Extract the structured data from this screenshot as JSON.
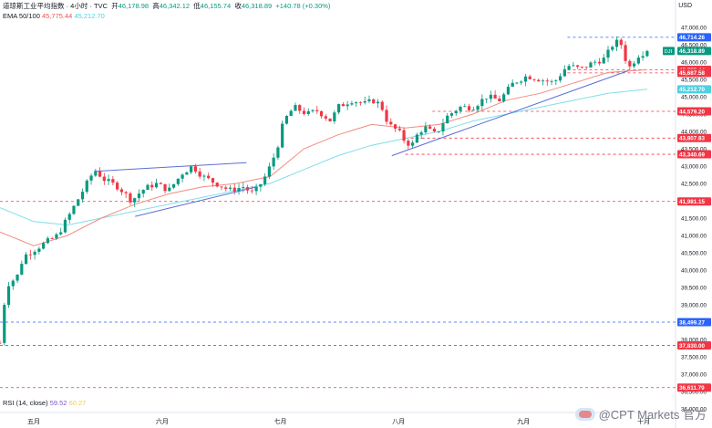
{
  "header": {
    "title": "道琼斯工业平均指数 · 4小时 · TVC",
    "ohlc_open_label": "开",
    "ohlc_open": "46,178.98",
    "ohlc_high_label": "高",
    "ohlc_high": "46,342.12",
    "ohlc_low_label": "低",
    "ohlc_low": "46,155.74",
    "ohlc_close_label": "收",
    "ohlc_close": "46,318.89",
    "change": "+140.78 (+0.30%)",
    "ema_label": "EMA 50/100",
    "ema50_value": "45,775.44",
    "ema100_value": "45,212.70",
    "rsi_label": "RSI (14, close)",
    "rsi_value1": "59.52",
    "rsi_value2": "60.27",
    "currency": "USD",
    "symbol_tag": "DJI"
  },
  "watermark": {
    "text": "@CPT Markets 官方"
  },
  "colors": {
    "up": "#089981",
    "down": "#f23645",
    "ema50": "#f28b82",
    "ema100": "#80deea",
    "trendline": "#5b6fd6",
    "red_level": "#f23645",
    "blue_level": "#2962ff"
  },
  "chart_data": {
    "type": "candlestick",
    "ylim": [
      36000,
      47000
    ],
    "y_ticks": [
      36000,
      36500,
      37000,
      37500,
      38000,
      38500,
      39000,
      39500,
      40000,
      40500,
      41000,
      41500,
      42000,
      42500,
      43000,
      43500,
      44000,
      44500,
      45000,
      45500,
      46000,
      46500,
      47000
    ],
    "y_tick_labels": [
      "36,000.00",
      "36,500.00",
      "37,000.00",
      "37,500.00",
      "38,000.00",
      "38,500.00",
      "39,000.00",
      "39,500.00",
      "40,000.00",
      "40,500.00",
      "41,000.00",
      "41,500.00",
      "42,000.00",
      "42,500.00",
      "43,000.00",
      "43,500.00",
      "44,000.00",
      "44,500.00",
      "45,000.00",
      "45,500.00",
      "46,000.00",
      "46,500.00",
      "47,000.00"
    ],
    "x_labels": [
      {
        "label": "五月",
        "t": 0.05
      },
      {
        "label": "六月",
        "t": 0.24
      },
      {
        "label": "七月",
        "t": 0.415
      },
      {
        "label": "八月",
        "t": 0.59
      },
      {
        "label": "九月",
        "t": 0.775
      },
      {
        "label": "十月",
        "t": 0.953
      }
    ],
    "waypoints": [
      [
        0,
        37900
      ],
      [
        0.005,
        38900
      ],
      [
        0.012,
        39600
      ],
      [
        0.025,
        39800
      ],
      [
        0.035,
        40400
      ],
      [
        0.06,
        40700
      ],
      [
        0.085,
        41000
      ],
      [
        0.1,
        41500
      ],
      [
        0.12,
        42200
      ],
      [
        0.14,
        42900
      ],
      [
        0.155,
        42600
      ],
      [
        0.175,
        42400
      ],
      [
        0.195,
        42000
      ],
      [
        0.21,
        42300
      ],
      [
        0.23,
        42500
      ],
      [
        0.25,
        42300
      ],
      [
        0.27,
        42800
      ],
      [
        0.285,
        43000
      ],
      [
        0.3,
        42700
      ],
      [
        0.32,
        42500
      ],
      [
        0.34,
        42300
      ],
      [
        0.36,
        42400
      ],
      [
        0.375,
        42200
      ],
      [
        0.39,
        42600
      ],
      [
        0.4,
        43000
      ],
      [
        0.41,
        43500
      ],
      [
        0.42,
        44300
      ],
      [
        0.435,
        44700
      ],
      [
        0.455,
        44500
      ],
      [
        0.47,
        44600
      ],
      [
        0.49,
        44300
      ],
      [
        0.5,
        44700
      ],
      [
        0.52,
        44900
      ],
      [
        0.54,
        44800
      ],
      [
        0.555,
        44900
      ],
      [
        0.565,
        44700
      ],
      [
        0.575,
        44200
      ],
      [
        0.59,
        44000
      ],
      [
        0.6,
        43700
      ],
      [
        0.61,
        43600
      ],
      [
        0.62,
        44000
      ],
      [
        0.63,
        44100
      ],
      [
        0.645,
        43900
      ],
      [
        0.66,
        44400
      ],
      [
        0.68,
        44700
      ],
      [
        0.7,
        44700
      ],
      [
        0.72,
        45000
      ],
      [
        0.74,
        44900
      ],
      [
        0.76,
        45400
      ],
      [
        0.78,
        45600
      ],
      [
        0.8,
        45500
      ],
      [
        0.82,
        45400
      ],
      [
        0.84,
        45900
      ],
      [
        0.86,
        45800
      ],
      [
        0.88,
        46000
      ],
      [
        0.895,
        46100
      ],
      [
        0.91,
        46600
      ],
      [
        0.92,
        46500
      ],
      [
        0.93,
        45800
      ],
      [
        0.945,
        46200
      ],
      [
        0.958,
        46320
      ]
    ],
    "candle_count": 150,
    "current_price": 46318.89,
    "ema50": [
      [
        0,
        41100
      ],
      [
        0.05,
        40700
      ],
      [
        0.1,
        41000
      ],
      [
        0.15,
        41500
      ],
      [
        0.2,
        41900
      ],
      [
        0.25,
        42200
      ],
      [
        0.3,
        42400
      ],
      [
        0.35,
        42500
      ],
      [
        0.4,
        42700
      ],
      [
        0.45,
        43500
      ],
      [
        0.5,
        43900
      ],
      [
        0.55,
        44200
      ],
      [
        0.6,
        44100
      ],
      [
        0.65,
        44200
      ],
      [
        0.7,
        44500
      ],
      [
        0.75,
        44900
      ],
      [
        0.8,
        45100
      ],
      [
        0.85,
        45400
      ],
      [
        0.9,
        45700
      ],
      [
        0.958,
        45780
      ]
    ],
    "ema100": [
      [
        0,
        41800
      ],
      [
        0.05,
        41400
      ],
      [
        0.1,
        41300
      ],
      [
        0.15,
        41500
      ],
      [
        0.2,
        41700
      ],
      [
        0.25,
        41900
      ],
      [
        0.3,
        42100
      ],
      [
        0.35,
        42300
      ],
      [
        0.4,
        42500
      ],
      [
        0.45,
        42900
      ],
      [
        0.5,
        43300
      ],
      [
        0.55,
        43600
      ],
      [
        0.6,
        43800
      ],
      [
        0.65,
        44000
      ],
      [
        0.7,
        44300
      ],
      [
        0.75,
        44500
      ],
      [
        0.8,
        44700
      ],
      [
        0.85,
        44900
      ],
      [
        0.9,
        45100
      ],
      [
        0.958,
        45215
      ]
    ],
    "trendlines": [
      {
        "t1": 0.14,
        "p1": 42850,
        "t2": 0.365,
        "p2": 43100
      },
      {
        "t1": 0.2,
        "p1": 41550,
        "t2": 0.38,
        "p2": 42400
      },
      {
        "t1": 0.58,
        "p1": 43300,
        "t2": 0.93,
        "p2": 45750
      }
    ],
    "levels": [
      {
        "price": 46714.26,
        "label": "46,714.26",
        "color": "blue",
        "from": 0.84
      },
      {
        "price": 45775.44,
        "label": "45,775.44",
        "color": "red",
        "from": 0.84
      },
      {
        "price": 45687.58,
        "label": "45,687.58",
        "color": "red",
        "from": 0.84
      },
      {
        "price": 44579.2,
        "label": "44,579.20",
        "color": "red",
        "from": 0.64
      },
      {
        "price": 43807.83,
        "label": "43,807.83",
        "color": "red",
        "from": 0.6
      },
      {
        "price": 43340.69,
        "label": "43,340.69",
        "color": "red",
        "from": 0.6
      },
      {
        "price": 41981.15,
        "label": "41,981.15",
        "color": "red",
        "from": 0
      },
      {
        "price": 38499.27,
        "label": "38,499.27",
        "color": "blue",
        "from": 0
      },
      {
        "price": 37830.0,
        "label": "37,830.00",
        "color": "red",
        "from": 0
      },
      {
        "price": 36611.79,
        "label": "36,611.79",
        "color": "red",
        "from": 0
      }
    ],
    "tags": [
      {
        "price": 46714.26,
        "label": "46,714.26",
        "color": "#2962ff"
      },
      {
        "price": 46318.89,
        "label": "46,318.89",
        "color": "#089981"
      },
      {
        "price": 45775.44,
        "label": "45,775.44",
        "color": "#f23645"
      },
      {
        "price": 45687.58,
        "label": "45,687.58",
        "color": "#f23645"
      },
      {
        "price": 45212.7,
        "label": "45,212.70",
        "color": "#4dd0e1"
      },
      {
        "price": 44579.2,
        "label": "44,579.20",
        "color": "#f23645"
      },
      {
        "price": 43807.83,
        "label": "43,807.83",
        "color": "#f23645"
      },
      {
        "price": 43340.69,
        "label": "43,340.69",
        "color": "#f23645"
      },
      {
        "price": 41981.15,
        "label": "41,981.15",
        "color": "#f23645"
      },
      {
        "price": 38499.27,
        "label": "38,499.27",
        "color": "#2962ff"
      },
      {
        "price": 37830.0,
        "label": "37,830.00",
        "color": "#f23645"
      },
      {
        "price": 36611.79,
        "label": "36,611.79",
        "color": "#f23645"
      }
    ]
  }
}
